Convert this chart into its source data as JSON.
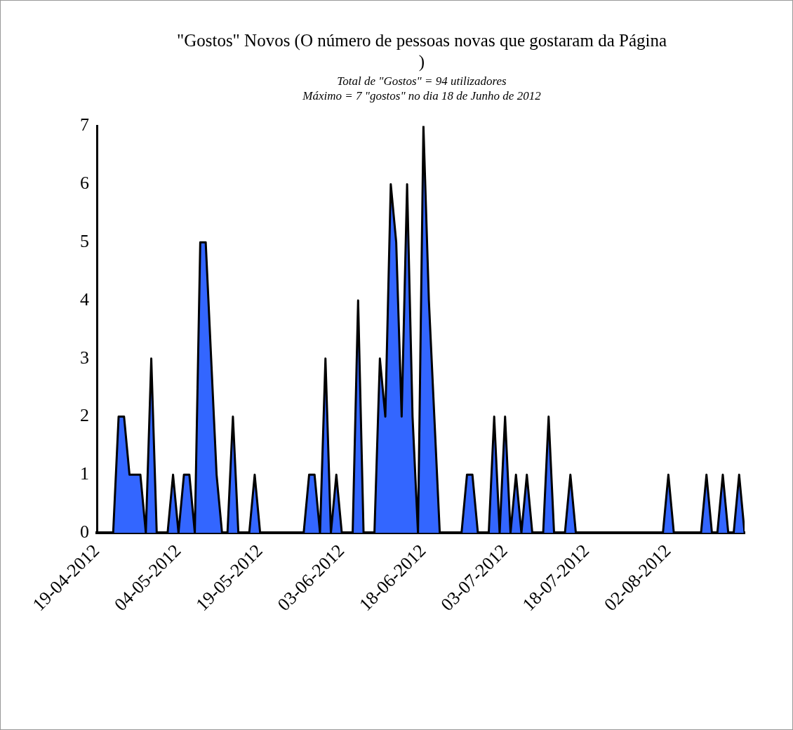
{
  "chart_data": {
    "type": "area",
    "title": "\"Gostos\" Novos (O número de pessoas novas que gostaram da Página )",
    "subtitle": "Total de \"Gostos\" = 94 utilizadores\nMáximo = 7 \"gostos\" no dia 18 de Junho de 2012",
    "x": [
      "2012-04-19",
      "2012-04-20",
      "2012-04-21",
      "2012-04-22",
      "2012-04-23",
      "2012-04-24",
      "2012-04-25",
      "2012-04-26",
      "2012-04-27",
      "2012-04-28",
      "2012-04-29",
      "2012-04-30",
      "2012-05-01",
      "2012-05-02",
      "2012-05-03",
      "2012-05-04",
      "2012-05-05",
      "2012-05-06",
      "2012-05-07",
      "2012-05-08",
      "2012-05-09",
      "2012-05-10",
      "2012-05-11",
      "2012-05-12",
      "2012-05-13",
      "2012-05-14",
      "2012-05-15",
      "2012-05-16",
      "2012-05-17",
      "2012-05-18",
      "2012-05-19",
      "2012-05-20",
      "2012-05-21",
      "2012-05-22",
      "2012-05-23",
      "2012-05-24",
      "2012-05-25",
      "2012-05-26",
      "2012-05-27",
      "2012-05-28",
      "2012-05-29",
      "2012-05-30",
      "2012-05-31",
      "2012-06-01",
      "2012-06-02",
      "2012-06-03",
      "2012-06-04",
      "2012-06-05",
      "2012-06-06",
      "2012-06-07",
      "2012-06-08",
      "2012-06-09",
      "2012-06-10",
      "2012-06-11",
      "2012-06-12",
      "2012-06-13",
      "2012-06-14",
      "2012-06-15",
      "2012-06-16",
      "2012-06-17",
      "2012-06-18",
      "2012-06-19",
      "2012-06-20",
      "2012-06-21",
      "2012-06-22",
      "2012-06-23",
      "2012-06-24",
      "2012-06-25",
      "2012-06-26",
      "2012-06-27",
      "2012-06-28",
      "2012-06-29",
      "2012-06-30",
      "2012-07-01",
      "2012-07-02",
      "2012-07-03",
      "2012-07-04",
      "2012-07-05",
      "2012-07-06",
      "2012-07-07",
      "2012-07-08",
      "2012-07-09",
      "2012-07-10",
      "2012-07-11",
      "2012-07-12",
      "2012-07-13",
      "2012-07-14",
      "2012-07-15",
      "2012-07-16",
      "2012-07-17",
      "2012-07-18",
      "2012-07-19",
      "2012-07-20",
      "2012-07-21",
      "2012-07-22",
      "2012-07-23",
      "2012-07-24",
      "2012-07-25",
      "2012-07-26",
      "2012-07-27",
      "2012-07-28",
      "2012-07-29",
      "2012-07-30",
      "2012-07-31",
      "2012-08-01",
      "2012-08-02",
      "2012-08-03",
      "2012-08-04",
      "2012-08-05",
      "2012-08-06",
      "2012-08-07",
      "2012-08-08",
      "2012-08-09",
      "2012-08-10",
      "2012-08-11",
      "2012-08-12",
      "2012-08-13",
      "2012-08-14",
      "2012-08-15",
      "2012-08-16"
    ],
    "series": [
      {
        "color": "#3366ff",
        "values": [
          0,
          0,
          0,
          0,
          2,
          2,
          1,
          1,
          1,
          0,
          3,
          0,
          0,
          0,
          1,
          0,
          1,
          1,
          0,
          5,
          5,
          3,
          1,
          0,
          0,
          2,
          0,
          0,
          0,
          1,
          0,
          0,
          0,
          0,
          0,
          0,
          0,
          0,
          0,
          1,
          1,
          0,
          3,
          0,
          1,
          0,
          0,
          0,
          4,
          0,
          0,
          0,
          3,
          2,
          6,
          5,
          2,
          6,
          2,
          0,
          7,
          4,
          2,
          0,
          0,
          0,
          0,
          0,
          1,
          1,
          0,
          0,
          0,
          2,
          0,
          2,
          0,
          1,
          0,
          1,
          0,
          0,
          0,
          2,
          0,
          0,
          0,
          1,
          0,
          0,
          0,
          0,
          0,
          0,
          0,
          0,
          0,
          0,
          0,
          0,
          0,
          0,
          0,
          0,
          0,
          1,
          0,
          0,
          0,
          0,
          0,
          0,
          1,
          0,
          0,
          1,
          0,
          0,
          1,
          0
        ]
      }
    ],
    "xlim": [
      "2012-04-19",
      "2012-08-16"
    ],
    "xticks": [
      {
        "value": "2012-04-19",
        "label": "19-04-2012"
      },
      {
        "value": "2012-05-04",
        "label": "04-05-2012"
      },
      {
        "value": "2012-05-19",
        "label": "19-05-2012"
      },
      {
        "value": "2012-06-03",
        "label": "03-06-2012"
      },
      {
        "value": "2012-06-18",
        "label": "18-06-2012"
      },
      {
        "value": "2012-07-03",
        "label": "03-07-2012"
      },
      {
        "value": "2012-07-18",
        "label": "18-07-2012"
      },
      {
        "value": "2012-08-02",
        "label": "02-08-2012"
      }
    ],
    "ylim": [
      0,
      7
    ],
    "yticks": [
      0,
      1,
      2,
      3,
      4,
      5,
      6,
      7
    ],
    "grid": false,
    "legend": false
  }
}
